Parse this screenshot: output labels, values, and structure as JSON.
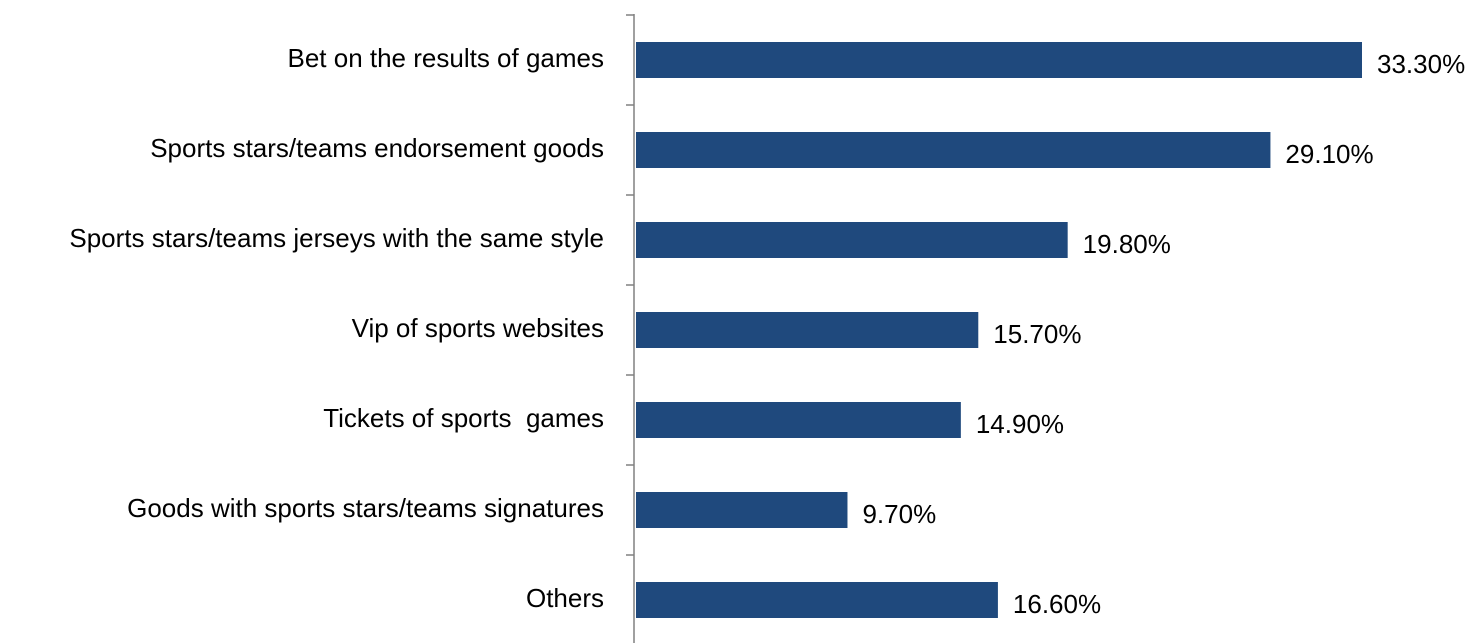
{
  "chart_data": {
    "type": "bar",
    "orientation": "horizontal",
    "categories": [
      "Bet on the results of games",
      "Sports stars/teams endorsement goods",
      "Sports stars/teams jerseys with the same style",
      "Vip of sports websites",
      "Tickets of sports  games",
      "Goods with sports stars/teams signatures",
      "Others"
    ],
    "values": [
      33.3,
      29.1,
      19.8,
      15.7,
      14.9,
      9.7,
      16.6
    ],
    "value_labels": [
      "33.30%",
      "29.10%",
      "19.80%",
      "15.70%",
      "14.90%",
      "9.70%",
      "16.60%"
    ],
    "title": "",
    "xlabel": "",
    "ylabel": "",
    "xlim": [
      0,
      35
    ],
    "grid": false,
    "legend": "none",
    "bar_color": "#1F497D"
  }
}
